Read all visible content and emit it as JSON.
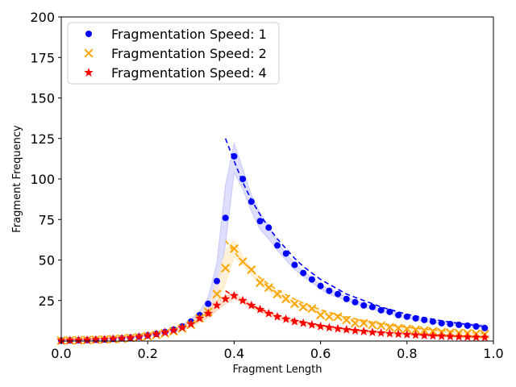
{
  "chart_data": {
    "type": "scatter",
    "title": "",
    "xlabel": "Fragment Length",
    "ylabel": "Fragment Frequency",
    "xlim": [
      0.0,
      1.0
    ],
    "ylim": [
      0,
      200
    ],
    "xticks": [
      {
        "value": 0.0,
        "label": "0.0"
      },
      {
        "value": 0.2,
        "label": "0.2"
      },
      {
        "value": 0.4,
        "label": "0.4"
      },
      {
        "value": 0.6,
        "label": "0.6"
      },
      {
        "value": 0.8,
        "label": "0.8"
      },
      {
        "value": 1.0,
        "label": "1.0"
      }
    ],
    "yticks": [
      {
        "value": 25,
        "label": "25"
      },
      {
        "value": 50,
        "label": "50"
      },
      {
        "value": 75,
        "label": "75"
      },
      {
        "value": 100,
        "label": "100"
      },
      {
        "value": 125,
        "label": "125"
      },
      {
        "value": 150,
        "label": "150"
      },
      {
        "value": 175,
        "label": "175"
      },
      {
        "value": 200,
        "label": "200"
      }
    ],
    "grid": false,
    "legend_position": "top-left",
    "x": [
      0.0,
      0.02,
      0.04,
      0.06,
      0.08,
      0.1,
      0.12,
      0.14,
      0.16,
      0.18,
      0.2,
      0.22,
      0.24,
      0.26,
      0.28,
      0.3,
      0.32,
      0.34,
      0.36,
      0.38,
      0.4,
      0.42,
      0.44,
      0.46,
      0.48,
      0.5,
      0.52,
      0.54,
      0.56,
      0.58,
      0.6,
      0.62,
      0.64,
      0.66,
      0.68,
      0.7,
      0.72,
      0.74,
      0.76,
      0.78,
      0.8,
      0.82,
      0.84,
      0.86,
      0.88,
      0.9,
      0.92,
      0.94,
      0.96,
      0.98
    ],
    "series": [
      {
        "name": "Fragmentation Speed: 1",
        "marker": "dot",
        "color": "#0000ff",
        "band_color": "#c8c8ff",
        "values": [
          0.3,
          0.4,
          0.5,
          0.6,
          0.8,
          1.0,
          1.3,
          1.6,
          2.1,
          2.7,
          3.5,
          4.4,
          5.6,
          7.0,
          9.0,
          12,
          16,
          23,
          37,
          76,
          114,
          100,
          86,
          74,
          70,
          59,
          54,
          47,
          42,
          38,
          34,
          31,
          29,
          26,
          24,
          22,
          21,
          19,
          18,
          16,
          15,
          14,
          13,
          12,
          11,
          10.5,
          10,
          9.5,
          9,
          8
        ],
        "band_upper": [
          0.4,
          0.5,
          0.6,
          0.7,
          0.9,
          1.1,
          1.4,
          1.8,
          2.3,
          2.9,
          3.8,
          4.8,
          6.1,
          7.8,
          10,
          13.5,
          18,
          27,
          48,
          96,
          122,
          106,
          90,
          79,
          71,
          61,
          54,
          48,
          43,
          39,
          35,
          32,
          30,
          27,
          25,
          23,
          21.5,
          20,
          19,
          17,
          16,
          15,
          14,
          13,
          12.5,
          12,
          11.5,
          11,
          10.5,
          10
        ],
        "band_lower": [
          0.2,
          0.3,
          0.4,
          0.5,
          0.6,
          0.8,
          1.1,
          1.4,
          1.8,
          2.4,
          3.1,
          3.9,
          5.0,
          6.3,
          8.0,
          10.5,
          14,
          19,
          28,
          60,
          104,
          94,
          80,
          69,
          63,
          56,
          50,
          44,
          40,
          36,
          32,
          29,
          27,
          25,
          23,
          21,
          19.5,
          18,
          17,
          15,
          14,
          13,
          12,
          11,
          10.5,
          10,
          9.5,
          9,
          8.5,
          8
        ],
        "fit_x": [
          0.38,
          0.4,
          0.42,
          0.44,
          0.46,
          0.48,
          0.5,
          0.52,
          0.54,
          0.56,
          0.58,
          0.6,
          0.62,
          0.64,
          0.66,
          0.68,
          0.7,
          0.72,
          0.74,
          0.76,
          0.78,
          0.8,
          0.82,
          0.84,
          0.86,
          0.88,
          0.9,
          0.92,
          0.94,
          0.96,
          0.98
        ],
        "fit_y": [
          125,
          111,
          98,
          87,
          78,
          70,
          63,
          57,
          51,
          46,
          42,
          38,
          35,
          32,
          29,
          27,
          25,
          23,
          21,
          19.5,
          18,
          16.5,
          15.5,
          14.5,
          13.5,
          12.5,
          11.7,
          10.9,
          10.2,
          9.6,
          9.0
        ]
      },
      {
        "name": "Fragmentation Speed: 2",
        "marker": "x",
        "color": "#ffa500",
        "band_color": "#ffe8bf",
        "values": [
          0.3,
          0.4,
          0.5,
          0.6,
          0.8,
          1.0,
          1.2,
          1.5,
          1.9,
          2.4,
          3.0,
          3.8,
          4.8,
          6.0,
          7.8,
          10,
          14,
          18,
          29,
          45,
          57,
          49,
          44,
          36,
          33,
          29,
          26,
          23,
          21,
          20,
          16,
          15,
          15,
          13,
          11,
          11,
          10,
          9.5,
          8.5,
          8,
          7.5,
          7,
          6.5,
          6,
          5.5,
          5.2,
          5,
          4.8,
          4.5,
          4.2
        ],
        "band_upper": [
          0.4,
          0.5,
          0.6,
          0.7,
          0.9,
          1.1,
          1.3,
          1.7,
          2.1,
          2.7,
          3.4,
          4.3,
          5.5,
          7.0,
          9.0,
          11.5,
          16,
          22,
          36,
          56,
          62,
          52,
          45,
          38,
          34,
          30,
          27,
          24,
          22,
          20.5,
          18.5,
          17,
          16,
          14.5,
          13,
          12.5,
          11.5,
          10.8,
          10,
          9.4,
          8.8,
          8.2,
          7.7,
          7.2,
          6.8,
          6.4,
          6.0,
          5.7,
          5.4,
          5.1
        ],
        "band_lower": [
          0.2,
          0.3,
          0.4,
          0.5,
          0.7,
          0.9,
          1.1,
          1.3,
          1.7,
          2.1,
          2.6,
          3.3,
          4.2,
          5.2,
          6.6,
          8.5,
          11.5,
          15,
          23,
          36,
          52,
          47,
          41,
          35,
          31,
          27.5,
          24.5,
          22,
          20,
          18.5,
          16.5,
          15,
          14,
          12.7,
          11.5,
          10.8,
          10,
          9.2,
          8.5,
          7.8,
          7.2,
          6.7,
          6.2,
          5.8,
          5.4,
          5.0,
          4.7,
          4.4,
          4.1,
          3.8
        ],
        "fit_x": [
          0.38,
          0.4,
          0.42,
          0.44,
          0.46,
          0.48,
          0.5,
          0.52,
          0.54,
          0.56,
          0.58,
          0.6,
          0.62,
          0.64,
          0.66,
          0.68,
          0.7,
          0.72,
          0.74,
          0.76,
          0.78,
          0.8,
          0.82,
          0.84,
          0.86,
          0.88,
          0.9,
          0.92,
          0.94,
          0.96,
          0.98
        ],
        "fit_y": [
          62,
          55,
          49,
          44,
          39,
          35,
          31.5,
          28.5,
          25.8,
          23.4,
          21.3,
          19.4,
          17.7,
          16.2,
          14.9,
          13.7,
          12.6,
          11.6,
          10.7,
          9.9,
          9.2,
          8.5,
          7.9,
          7.4,
          6.9,
          6.4,
          6.0,
          5.6,
          5.3,
          5.0,
          4.7
        ]
      },
      {
        "name": "Fragmentation Speed: 4",
        "marker": "star",
        "color": "#ff0000",
        "band_color": "#ffd0b0",
        "values": [
          0.3,
          0.4,
          0.5,
          0.6,
          0.8,
          1.0,
          1.3,
          1.6,
          2.0,
          2.6,
          3.3,
          4.2,
          5.3,
          6.6,
          8.3,
          10.5,
          14,
          17,
          22,
          26,
          28,
          25,
          22,
          19.5,
          17,
          15,
          13.5,
          12,
          11,
          10,
          9,
          8.3,
          7.6,
          7,
          6.4,
          5.9,
          5.4,
          5,
          4.6,
          4.3,
          4,
          3.7,
          3.4,
          3.2,
          3,
          2.8,
          2.6,
          2.5,
          2.3,
          2.2
        ],
        "band_upper": [
          0.4,
          0.5,
          0.6,
          0.7,
          0.9,
          1.1,
          1.4,
          1.8,
          2.3,
          2.9,
          3.7,
          4.7,
          6.0,
          7.5,
          9.5,
          12,
          16,
          20,
          25,
          28,
          29,
          26,
          23,
          20.5,
          18,
          16,
          14.5,
          13,
          12,
          11,
          10,
          9.2,
          8.4,
          7.8,
          7.2,
          6.6,
          6.1,
          5.6,
          5.2,
          4.9,
          4.5,
          4.2,
          3.9,
          3.7,
          3.4,
          3.2,
          3.0,
          2.9,
          2.7,
          2.6
        ],
        "band_lower": [
          0.2,
          0.3,
          0.4,
          0.5,
          0.7,
          0.9,
          1.2,
          1.4,
          1.8,
          2.3,
          2.9,
          3.7,
          4.6,
          5.8,
          7.2,
          9.0,
          12,
          14.5,
          19,
          23,
          26,
          23.5,
          20.5,
          18,
          16,
          14,
          12.5,
          11,
          10,
          9.2,
          8.2,
          7.5,
          6.9,
          6.3,
          5.8,
          5.3,
          4.8,
          4.5,
          4.1,
          3.8,
          3.5,
          3.3,
          3.0,
          2.8,
          2.6,
          2.4,
          2.3,
          2.2,
          2.0,
          1.9
        ],
        "fit_x": [
          0.38,
          0.4,
          0.42,
          0.44,
          0.46,
          0.48,
          0.5,
          0.52,
          0.54,
          0.56,
          0.58,
          0.6,
          0.62,
          0.64,
          0.66,
          0.68,
          0.7,
          0.72,
          0.74,
          0.76,
          0.78,
          0.8,
          0.82,
          0.84,
          0.86,
          0.88,
          0.9,
          0.92,
          0.94,
          0.96,
          0.98
        ],
        "fit_y": [
          31,
          27.5,
          24.5,
          22,
          19.7,
          17.7,
          16,
          14.4,
          13,
          11.8,
          10.7,
          9.7,
          8.9,
          8.1,
          7.4,
          6.8,
          6.3,
          5.8,
          5.3,
          4.9,
          4.6,
          4.3,
          4.0,
          3.7,
          3.4,
          3.2,
          3.0,
          2.8,
          2.6,
          2.5,
          2.3
        ]
      }
    ]
  }
}
